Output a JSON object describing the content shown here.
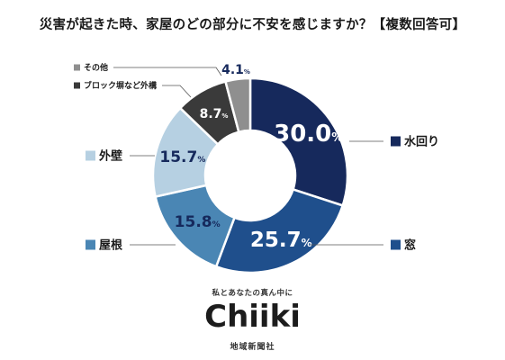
{
  "title": "災害が起きた時、家屋のどの部分に不安を感じますか？【複数回答可】",
  "chart_data": {
    "type": "pie",
    "donut": true,
    "title": "災害が起きた時、家屋のどの部分に不安を感じますか？【複数回答可】",
    "categories": [
      "水回り",
      "窓",
      "屋根",
      "外壁",
      "ブロック塀など外構",
      "その他"
    ],
    "values": [
      30.0,
      25.7,
      15.8,
      15.7,
      8.7,
      4.1
    ],
    "value_labels": [
      "30.0",
      "25.7",
      "15.8",
      "15.7",
      "8.7",
      "4.1"
    ],
    "unit": "%",
    "colors": [
      "#16295c",
      "#1f4f8c",
      "#4a86b4",
      "#b6d0e2",
      "#3a3a3a",
      "#8f8f8f"
    ],
    "label_colors": [
      "#ffffff",
      "#ffffff",
      "#16295c",
      "#16295c",
      "#ffffff",
      "#16295c"
    ],
    "legend_label_colors": [
      "#1a1a1a",
      "#1a1a1a",
      "#1a1a1a",
      "#1a1a1a",
      "#1a1a1a",
      "#1a1a1a"
    ]
  },
  "footer": {
    "tagline": "私とあなたの真ん中に",
    "logo_text": "Chiiki",
    "company": "地域新聞社"
  }
}
